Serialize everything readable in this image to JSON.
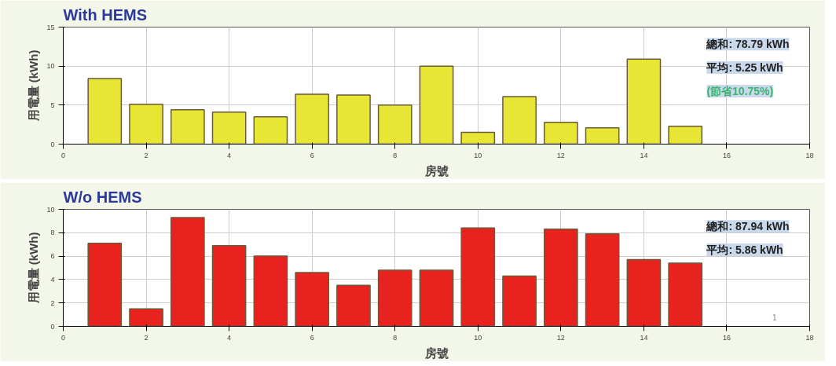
{
  "chart_data": [
    {
      "type": "bar",
      "title": "With HEMS",
      "xlabel": "房號",
      "ylabel": "用電量 (kWh)",
      "x": [
        1,
        2,
        3,
        4,
        5,
        6,
        7,
        8,
        9,
        10,
        11,
        12,
        13,
        14,
        15
      ],
      "values": [
        8.4,
        5.1,
        4.4,
        4.1,
        3.5,
        6.4,
        6.3,
        5.0,
        10.0,
        1.5,
        6.1,
        2.8,
        2.1,
        10.9,
        2.3
      ],
      "color": "#e8e635",
      "xlim": [
        0,
        18
      ],
      "xticks": [
        0,
        2,
        4,
        6,
        8,
        10,
        12,
        14,
        16,
        18
      ],
      "ylim": [
        0,
        15
      ],
      "yticks": [
        0,
        5,
        10,
        15
      ],
      "grid": true,
      "annotations": [
        "總和: 78.79 kWh",
        "平均: 5.25 kWh",
        "(節省10.75%)"
      ]
    },
    {
      "type": "bar",
      "title": "W/o HEMS",
      "xlabel": "房號",
      "ylabel": "用電量 (kWh)",
      "x": [
        1,
        2,
        3,
        4,
        5,
        6,
        7,
        8,
        9,
        10,
        11,
        12,
        13,
        14,
        15
      ],
      "values": [
        7.1,
        1.5,
        9.3,
        6.9,
        6.0,
        4.6,
        3.5,
        4.8,
        4.8,
        8.4,
        4.3,
        8.3,
        7.9,
        5.7,
        5.4
      ],
      "color": "#e8231f",
      "xlim": [
        0,
        18
      ],
      "xticks": [
        0,
        2,
        4,
        6,
        8,
        10,
        12,
        14,
        16,
        18
      ],
      "ylim": [
        0,
        10
      ],
      "yticks": [
        0,
        2,
        4,
        6,
        8,
        10
      ],
      "grid": true,
      "annotations": [
        "總和: 87.94 kWh",
        "平均: 5.86 kWh",
        "1"
      ]
    }
  ]
}
